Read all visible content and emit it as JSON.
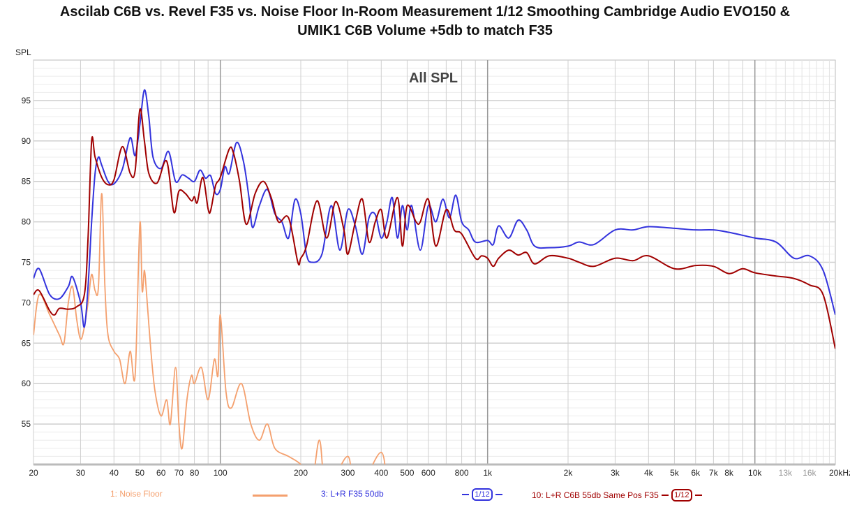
{
  "title_line1": "Ascilab C6B vs. Revel F35 vs. Noise Floor In-Room Measurement 1/12 Smoothing Cambridge Audio EVO150 &",
  "title_line2": "UMIK1 C6B Volume +5db to match F35",
  "chart_data": {
    "type": "line",
    "title": "All SPL",
    "ylabel": "SPL",
    "xlabel": "",
    "xscale": "log",
    "xlim": [
      20,
      20000
    ],
    "ylim": [
      50,
      100
    ],
    "grid": true,
    "legend": "bottom",
    "yticks": [
      55,
      60,
      65,
      70,
      75,
      80,
      85,
      90,
      95
    ],
    "xticks": [
      {
        "f": 20,
        "label": "20"
      },
      {
        "f": 30,
        "label": "30"
      },
      {
        "f": 40,
        "label": "40"
      },
      {
        "f": 50,
        "label": "50"
      },
      {
        "f": 60,
        "label": "60"
      },
      {
        "f": 70,
        "label": "70"
      },
      {
        "f": 80,
        "label": "80"
      },
      {
        "f": 100,
        "label": "100"
      },
      {
        "f": 200,
        "label": "200"
      },
      {
        "f": 300,
        "label": "300"
      },
      {
        "f": 400,
        "label": "400"
      },
      {
        "f": 500,
        "label": "500"
      },
      {
        "f": 600,
        "label": "600"
      },
      {
        "f": 800,
        "label": "800"
      },
      {
        "f": 1000,
        "label": "1k"
      },
      {
        "f": 2000,
        "label": "2k"
      },
      {
        "f": 3000,
        "label": "3k"
      },
      {
        "f": 4000,
        "label": "4k"
      },
      {
        "f": 5000,
        "label": "5k"
      },
      {
        "f": 6000,
        "label": "6k"
      },
      {
        "f": 7000,
        "label": "7k"
      },
      {
        "f": 8000,
        "label": "8k"
      },
      {
        "f": 10000,
        "label": "10k"
      },
      {
        "f": 13000,
        "label": "13k",
        "grey": true
      },
      {
        "f": 16000,
        "label": "16k",
        "grey": true
      },
      {
        "f": 20000,
        "label": "20kHz"
      }
    ],
    "series": [
      {
        "name": "1: Noise Floor",
        "color": "#f4a06e",
        "smoothing": "",
        "x": [
          20,
          21,
          23,
          25,
          26,
          27,
          28,
          29,
          30,
          31,
          32,
          33,
          34,
          35,
          36,
          37,
          38,
          40,
          42,
          44,
          46,
          48,
          50,
          51,
          52,
          53,
          55,
          57,
          60,
          63,
          65,
          68,
          70,
          72,
          75,
          78,
          80,
          85,
          90,
          95,
          98,
          100,
          105,
          110,
          120,
          130,
          140,
          150,
          160,
          180,
          200,
          220,
          235,
          250,
          300,
          320,
          400,
          420
        ],
        "y": [
          66,
          71,
          68.5,
          66,
          65,
          70,
          72,
          68,
          65.5,
          67,
          70,
          73.5,
          71.5,
          72,
          83.5,
          72,
          66,
          64,
          63,
          60,
          64,
          61,
          79.8,
          71.5,
          74,
          71,
          64,
          59,
          56,
          58,
          55,
          62,
          55,
          52,
          58,
          61,
          60,
          62,
          58,
          63,
          61,
          68.5,
          59,
          57,
          60,
          55,
          53,
          55,
          52,
          51,
          50,
          48,
          53,
          47,
          51,
          46,
          51.5,
          45
        ]
      },
      {
        "name": "3: L+R F35 50db",
        "color": "#3333dd",
        "smoothing": "1/12",
        "x": [
          20,
          21,
          23,
          25,
          27,
          28,
          30,
          31,
          32,
          33,
          34,
          35,
          36,
          38,
          40,
          43,
          46,
          48,
          50,
          52,
          54,
          56,
          60,
          64,
          68,
          72,
          76,
          80,
          84,
          88,
          92,
          96,
          100,
          104,
          108,
          115,
          122,
          128,
          132,
          140,
          150,
          160,
          170,
          180,
          190,
          200,
          210,
          220,
          240,
          260,
          280,
          300,
          320,
          340,
          360,
          380,
          400,
          420,
          440,
          460,
          480,
          500,
          520,
          560,
          600,
          640,
          680,
          720,
          760,
          800,
          850,
          900,
          1000,
          1050,
          1100,
          1200,
          1300,
          1400,
          1500,
          1700,
          2000,
          2200,
          2500,
          3000,
          3500,
          4000,
          5000,
          6000,
          7000,
          8000,
          10000,
          12000,
          14000,
          16000,
          18000,
          20000
        ],
        "y": [
          73,
          74.2,
          71,
          70.5,
          72,
          73.2,
          70,
          67,
          72,
          80,
          86,
          88,
          87,
          85,
          84.7,
          86.5,
          90.4,
          88.2,
          92,
          96.3,
          93,
          88,
          86.6,
          88.7,
          85,
          85.8,
          85.4,
          85,
          86.4,
          85.4,
          85.7,
          83.5,
          84,
          86.8,
          86,
          89.8,
          87.5,
          83,
          79.3,
          82,
          84,
          81,
          80,
          78,
          82.7,
          81,
          76,
          75,
          76,
          82,
          76.5,
          81.5,
          79.5,
          76,
          80.5,
          80.9,
          78,
          80,
          83,
          78,
          82,
          79,
          82,
          76.5,
          82,
          80,
          82.8,
          80.5,
          83.3,
          80,
          79,
          77.5,
          77.7,
          77.2,
          79.5,
          78,
          80.2,
          79,
          77,
          76.8,
          77,
          77.5,
          77.2,
          79,
          79,
          79.4,
          79.2,
          79,
          79,
          78.7,
          78,
          77.5,
          75.5,
          75.8,
          74,
          68.5
        ]
      },
      {
        "name": "10: L+R C6B 55db Same Pos F35",
        "color": "#a00000",
        "smoothing": "1/12",
        "x": [
          20,
          21,
          23,
          24,
          25,
          27,
          29,
          31,
          32,
          33,
          34,
          36,
          38,
          40,
          43,
          46,
          48,
          50,
          52,
          54,
          58,
          63,
          67,
          70,
          74,
          78,
          80,
          82,
          86,
          90,
          92,
          96,
          100,
          108,
          112,
          118,
          125,
          135,
          145,
          155,
          165,
          180,
          195,
          200,
          210,
          230,
          250,
          270,
          290,
          300,
          320,
          340,
          360,
          380,
          400,
          420,
          460,
          480,
          500,
          540,
          560,
          600,
          640,
          700,
          750,
          800,
          900,
          950,
          1000,
          1050,
          1100,
          1200,
          1300,
          1400,
          1500,
          1700,
          2000,
          2200,
          2500,
          3000,
          3500,
          4000,
          5000,
          6000,
          7000,
          8000,
          9000,
          10000,
          12000,
          14000,
          16000,
          18000,
          20000
        ],
        "y": [
          71,
          71.5,
          69,
          68.5,
          69.3,
          69.2,
          69.5,
          71,
          78,
          90,
          88,
          85.5,
          84.6,
          85.2,
          89.3,
          86,
          86.3,
          93.9,
          90,
          86,
          84.8,
          87.5,
          81.2,
          83.8,
          83.5,
          82.6,
          83.1,
          82.4,
          85.5,
          81.6,
          81.4,
          84.5,
          85.5,
          89,
          88.5,
          85,
          79.7,
          83.5,
          85,
          83,
          80,
          80.5,
          75,
          75.5,
          77,
          82.6,
          78,
          82.5,
          79,
          76,
          80,
          82.8,
          77.5,
          80,
          81.5,
          78,
          83,
          77,
          82,
          80,
          80,
          82.8,
          77,
          81.5,
          79,
          78.5,
          75.5,
          75.8,
          75.5,
          74.5,
          75.5,
          76.5,
          75.9,
          76.2,
          74.8,
          75.8,
          75.5,
          75,
          74.5,
          75.5,
          75.2,
          75.8,
          74.2,
          74.6,
          74.5,
          73.6,
          74.2,
          73.7,
          73.3,
          73,
          72.2,
          71,
          64.3
        ]
      }
    ]
  }
}
